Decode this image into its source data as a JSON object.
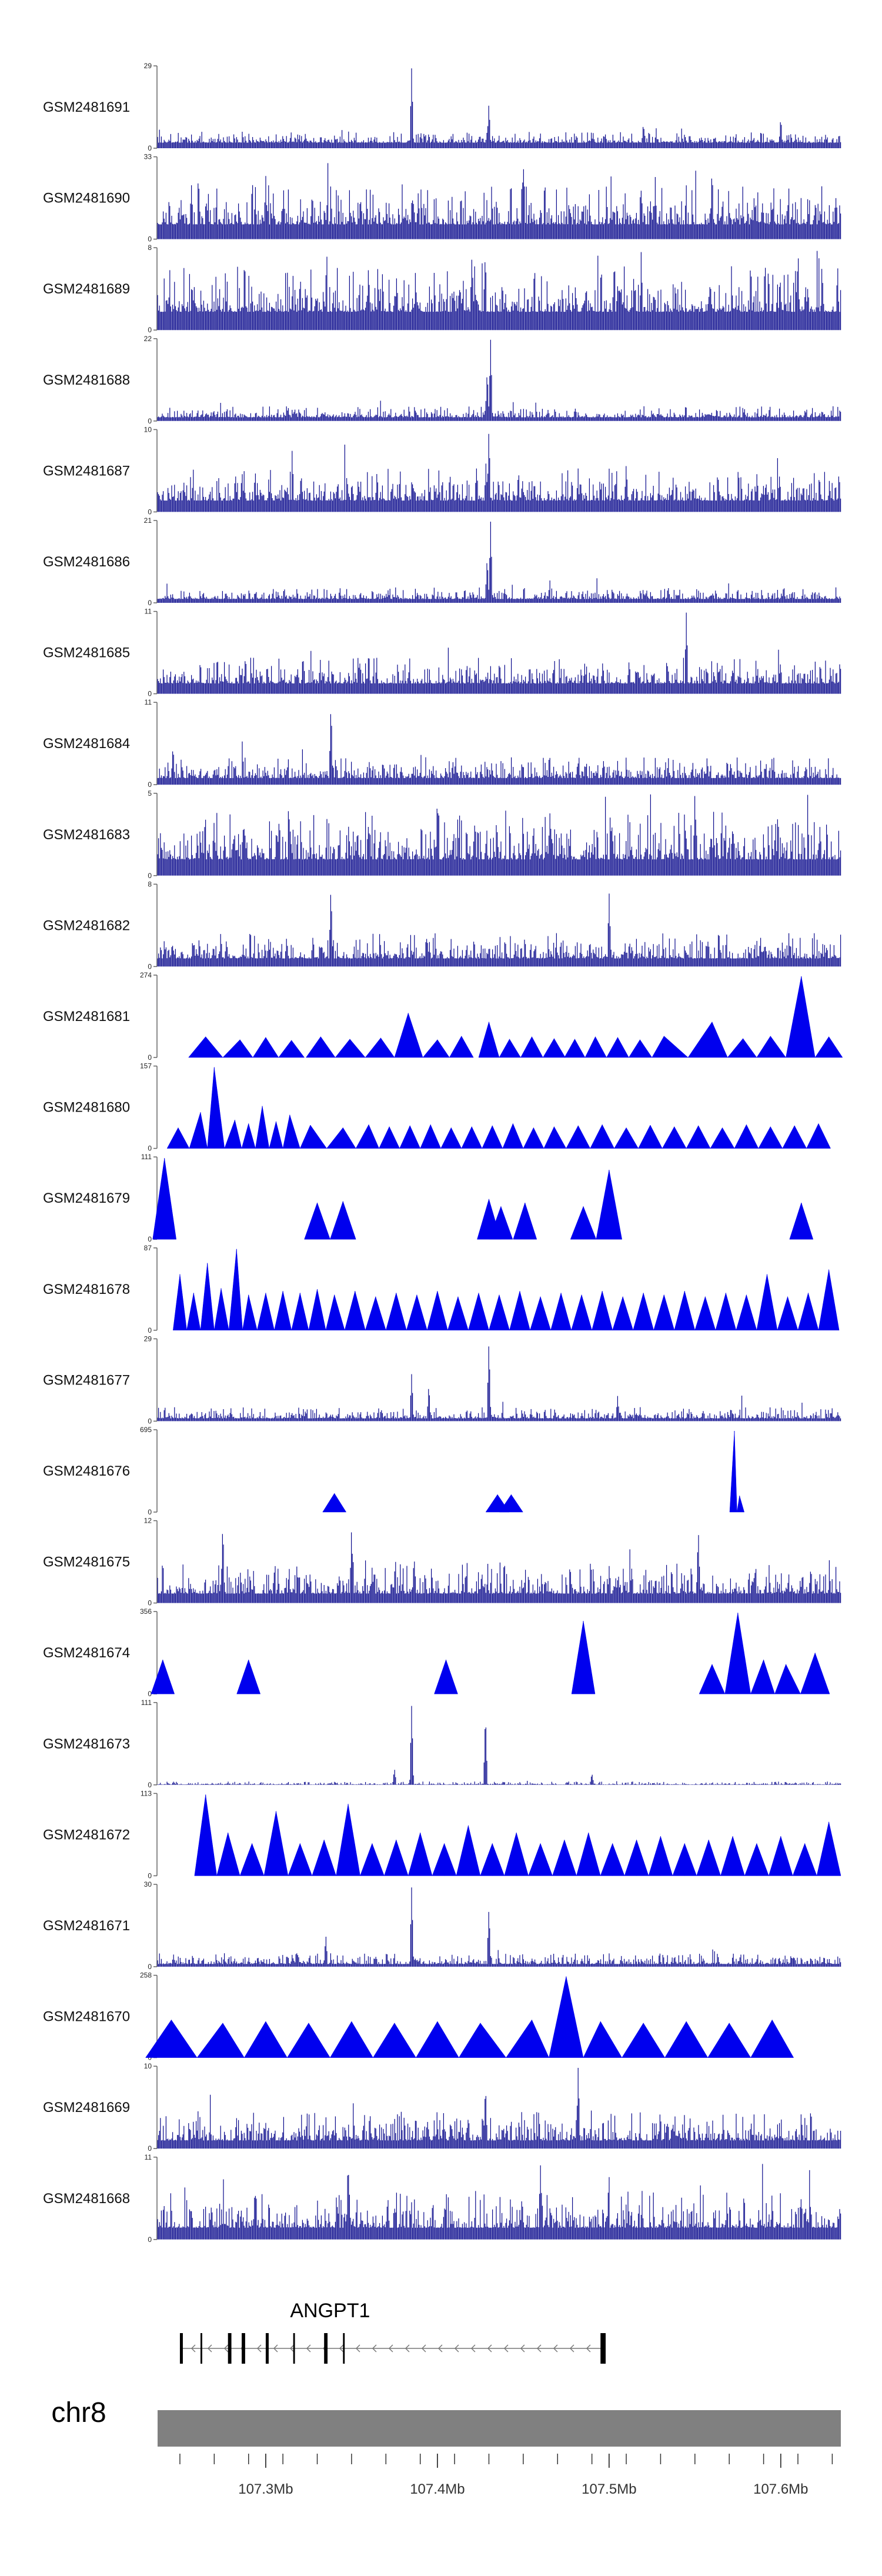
{
  "chart_data": {
    "type": "area",
    "title": "",
    "xlabel": "",
    "ylabel": "",
    "xlim_mb": [
      107.237,
      107.635
    ],
    "tracks": [
      {
        "name": "GSM2481691",
        "ymax": 29,
        "ymin": 0,
        "style": "dense",
        "color": "#0a0a8c",
        "baseline": 2.0,
        "noise": 4.0,
        "peaks": [
          [
            107.385,
            29
          ],
          [
            107.43,
            16
          ],
          [
            107.6,
            11
          ],
          [
            107.52,
            9
          ]
        ],
        "seed": 11
      },
      {
        "name": "GSM2481690",
        "ymax": 33,
        "ymin": 0,
        "style": "dense",
        "color": "#0a0a8c",
        "baseline": 6.0,
        "noise": 16.0,
        "peaks": [
          [
            107.45,
            33
          ],
          [
            107.56,
            30
          ],
          [
            107.3,
            26
          ]
        ],
        "seed": 12
      },
      {
        "name": "GSM2481689",
        "ymax": 8,
        "ymin": 0,
        "style": "dense",
        "color": "#0a0a8c",
        "baseline": 1.8,
        "noise": 4.5,
        "peaks": [
          [
            107.61,
            8
          ],
          [
            107.42,
            7
          ]
        ],
        "seed": 13
      },
      {
        "name": "GSM2481688",
        "ymax": 22,
        "ymin": 0,
        "style": "dense",
        "color": "#0a0a8c",
        "baseline": 1.0,
        "noise": 3.0,
        "peaks": [
          [
            107.431,
            22
          ],
          [
            107.429,
            14
          ]
        ],
        "seed": 14
      },
      {
        "name": "GSM2481687",
        "ymax": 10,
        "ymin": 0,
        "style": "dense",
        "color": "#0a0a8c",
        "baseline": 1.4,
        "noise": 4.0,
        "peaks": [
          [
            107.43,
            10
          ],
          [
            107.51,
            6
          ]
        ],
        "seed": 15
      },
      {
        "name": "GSM2481686",
        "ymax": 21,
        "ymin": 0,
        "style": "dense",
        "color": "#0a0a8c",
        "baseline": 1.0,
        "noise": 3.0,
        "peaks": [
          [
            107.431,
            21
          ],
          [
            107.429,
            12
          ]
        ],
        "seed": 16
      },
      {
        "name": "GSM2481685",
        "ymax": 11,
        "ymin": 0,
        "style": "dense",
        "color": "#0a0a8c",
        "baseline": 1.4,
        "noise": 3.5,
        "peaks": [
          [
            107.545,
            11
          ],
          [
            107.36,
            6
          ]
        ],
        "seed": 17
      },
      {
        "name": "GSM2481684",
        "ymax": 11,
        "ymin": 0,
        "style": "dense",
        "color": "#0a0a8c",
        "baseline": 0.9,
        "noise": 2.8,
        "peaks": [
          [
            107.338,
            11
          ],
          [
            107.246,
            5
          ]
        ],
        "seed": 18
      },
      {
        "name": "GSM2481683",
        "ymax": 5,
        "ymin": 0,
        "style": "dense",
        "color": "#0a0a8c",
        "baseline": 1.0,
        "noise": 3.0,
        "peaks": [
          [
            107.4,
            5
          ],
          [
            107.55,
            5
          ]
        ],
        "seed": 19
      },
      {
        "name": "GSM2481682",
        "ymax": 8,
        "ymin": 0,
        "style": "dense",
        "color": "#0a0a8c",
        "baseline": 0.8,
        "noise": 2.5,
        "peaks": [
          [
            107.338,
            8
          ],
          [
            107.5,
            7
          ]
        ],
        "seed": 20
      },
      {
        "name": "GSM2481681",
        "ymax": 274,
        "ymin": 0,
        "style": "triangles",
        "color": "#0000ee",
        "peaks_mb": [
          107.265,
          107.285,
          107.3,
          107.315,
          107.332,
          107.349,
          107.367,
          107.383,
          107.4,
          107.414,
          107.43,
          107.442,
          107.455,
          107.468,
          107.48,
          107.492,
          107.505,
          107.518,
          107.532,
          107.56,
          107.578,
          107.594,
          107.612,
          107.628
        ],
        "heights": [
          70,
          60,
          68,
          58,
          70,
          62,
          66,
          150,
          60,
          72,
          120,
          62,
          70,
          64,
          62,
          70,
          68,
          60,
          72,
          120,
          64,
          72,
          274,
          70
        ],
        "gaps_after": [
          3,
          9,
          13
        ]
      },
      {
        "name": "GSM2481680",
        "ymax": 157,
        "ymin": 0,
        "style": "triangles",
        "color": "#0000ee",
        "peaks_mb": [
          107.249,
          107.262,
          107.27,
          107.282,
          107.29,
          107.298,
          107.306,
          107.314,
          107.326,
          107.345,
          107.36,
          107.372,
          107.384,
          107.396,
          107.408,
          107.42,
          107.432,
          107.444,
          107.456,
          107.468,
          107.482,
          107.496,
          107.51,
          107.524,
          107.538,
          107.552,
          107.566,
          107.58,
          107.594,
          107.608,
          107.622
        ],
        "heights": [
          40,
          70,
          157,
          55,
          48,
          82,
          52,
          65,
          45,
          40,
          46,
          42,
          44,
          46,
          40,
          42,
          44,
          48,
          40,
          42,
          44,
          46,
          40,
          45,
          42,
          44,
          40,
          46,
          42,
          44,
          48
        ],
        "gaps_after": []
      },
      {
        "name": "GSM2481679",
        "ymax": 111,
        "ymin": 0,
        "style": "triangles",
        "color": "#0000ee",
        "peaks_mb": [
          107.241,
          107.33,
          107.345,
          107.43,
          107.437,
          107.451,
          107.485,
          107.5,
          107.612
        ],
        "heights": [
          111,
          50,
          52,
          55,
          45,
          50,
          45,
          95,
          50
        ],
        "gaps_after": [
          0,
          2,
          3,
          4,
          5,
          7
        ]
      },
      {
        "name": "GSM2481678",
        "ymax": 87,
        "ymin": 0,
        "style": "triangles",
        "color": "#0000ee",
        "peaks_mb": [
          107.25,
          107.258,
          107.266,
          107.274,
          107.283,
          107.29,
          107.3,
          107.31,
          107.32,
          107.33,
          107.34,
          107.352,
          107.364,
          107.376,
          107.388,
          107.4,
          107.412,
          107.424,
          107.436,
          107.448,
          107.46,
          107.472,
          107.484,
          107.496,
          107.508,
          107.52,
          107.532,
          107.544,
          107.556,
          107.568,
          107.58,
          107.592,
          107.604,
          107.616,
          107.628
        ],
        "heights": [
          60,
          40,
          72,
          45,
          87,
          38,
          40,
          42,
          40,
          44,
          38,
          42,
          36,
          40,
          38,
          42,
          36,
          40,
          38,
          42,
          36,
          40,
          38,
          42,
          36,
          40,
          38,
          42,
          36,
          40,
          38,
          60,
          36,
          40,
          65
        ],
        "gaps_after": []
      },
      {
        "name": "GSM2481677",
        "ymax": 29,
        "ymin": 0,
        "style": "dense",
        "color": "#0a0a8c",
        "baseline": 1.0,
        "noise": 4.0,
        "peaks": [
          [
            107.43,
            29
          ],
          [
            107.385,
            17
          ],
          [
            107.395,
            13
          ],
          [
            107.505,
            9
          ]
        ],
        "seed": 21
      },
      {
        "name": "GSM2481676",
        "ymax": 695,
        "ymin": 0,
        "style": "triangles",
        "color": "#0000ee",
        "peaks_mb": [
          107.34,
          107.435,
          107.443,
          107.573,
          107.576
        ],
        "heights": [
          160,
          150,
          150,
          695,
          140
        ],
        "gaps_after": [
          0,
          1,
          2
        ]
      },
      {
        "name": "GSM2481675",
        "ymax": 12,
        "ymin": 0,
        "style": "dense",
        "color": "#0a0a8c",
        "baseline": 1.4,
        "noise": 5.0,
        "peaks": [
          [
            107.275,
            12
          ],
          [
            107.35,
            11
          ],
          [
            107.552,
            11
          ]
        ],
        "seed": 22
      },
      {
        "name": "GSM2481674",
        "ymax": 356,
        "ymin": 0,
        "style": "triangles",
        "color": "#0000ee",
        "peaks_mb": [
          107.24,
          107.29,
          107.405,
          107.485,
          107.56,
          107.575,
          107.59,
          107.603,
          107.62
        ],
        "heights": [
          150,
          150,
          150,
          320,
          130,
          356,
          150,
          130,
          180
        ],
        "gaps_after": [
          0,
          1,
          2,
          3
        ]
      },
      {
        "name": "GSM2481673",
        "ymax": 111,
        "ymin": 0,
        "style": "dense",
        "color": "#0a0a8c",
        "baseline": 0.5,
        "noise": 4.0,
        "peaks": [
          [
            107.385,
            111
          ],
          [
            107.428,
            100
          ],
          [
            107.375,
            22
          ],
          [
            107.49,
            16
          ]
        ],
        "seed": 23
      },
      {
        "name": "GSM2481672",
        "ymax": 113,
        "ymin": 0,
        "style": "triangles",
        "color": "#0000ee",
        "peaks_mb": [
          107.265,
          107.278,
          107.292,
          107.306,
          107.32,
          107.334,
          107.348,
          107.362,
          107.376,
          107.39,
          107.404,
          107.418,
          107.432,
          107.446,
          107.46,
          107.474,
          107.488,
          107.502,
          107.516,
          107.53,
          107.544,
          107.558,
          107.572,
          107.586,
          107.6,
          107.614,
          107.628
        ],
        "heights": [
          113,
          60,
          45,
          90,
          45,
          50,
          100,
          45,
          50,
          60,
          45,
          70,
          45,
          60,
          45,
          50,
          60,
          45,
          50,
          55,
          45,
          50,
          55,
          45,
          55,
          45,
          75
        ],
        "gaps_after": []
      },
      {
        "name": "GSM2481671",
        "ymax": 30,
        "ymin": 0,
        "style": "dense",
        "color": "#0a0a8c",
        "baseline": 1.0,
        "noise": 4.0,
        "peaks": [
          [
            107.385,
            30
          ],
          [
            107.43,
            22
          ],
          [
            107.335,
            12
          ]
        ],
        "seed": 24
      },
      {
        "name": "GSM2481670",
        "ymax": 258,
        "ymin": 0,
        "style": "triangles",
        "color": "#0000ee",
        "peaks_mb": [
          107.245,
          107.275,
          107.3,
          107.325,
          107.35,
          107.375,
          107.4,
          107.425,
          107.455,
          107.475,
          107.495,
          107.52,
          107.545,
          107.57,
          107.595
        ],
        "heights": [
          120,
          110,
          115,
          110,
          115,
          110,
          115,
          110,
          120,
          258,
          115,
          110,
          115,
          110,
          120
        ],
        "gaps_after": []
      },
      {
        "name": "GSM2481669",
        "ymax": 10,
        "ymin": 0,
        "style": "dense",
        "color": "#0a0a8c",
        "baseline": 1.0,
        "noise": 3.6,
        "peaks": [
          [
            107.482,
            10
          ],
          [
            107.428,
            8
          ]
        ],
        "seed": 25
      },
      {
        "name": "GSM2481668",
        "ymax": 11,
        "ymin": 0,
        "style": "dense",
        "color": "#0a0a8c",
        "baseline": 1.6,
        "noise": 5.0,
        "peaks": [
          [
            107.348,
            11
          ],
          [
            107.46,
            10
          ]
        ],
        "seed": 26
      }
    ],
    "gene": {
      "name": "ANGPT1",
      "strand": "-",
      "start_mb": 107.25,
      "end_mb": 107.498,
      "exons_mb": [
        [
          107.25,
          107.253
        ],
        [
          107.262,
          107.263
        ],
        [
          107.278,
          107.28
        ],
        [
          107.286,
          107.288
        ],
        [
          107.3,
          107.302
        ],
        [
          107.316,
          107.317
        ],
        [
          107.334,
          107.336
        ],
        [
          107.345,
          107.346
        ],
        [
          107.495,
          107.498
        ]
      ]
    },
    "ideogram": {
      "chromosome": "chr8",
      "ticks_mb": [
        107.25,
        107.27,
        107.29,
        107.31,
        107.33,
        107.35,
        107.37,
        107.39,
        107.41,
        107.43,
        107.45,
        107.47,
        107.49,
        107.51,
        107.53,
        107.55,
        107.57,
        107.59,
        107.61,
        107.63
      ],
      "major_ticks": [
        {
          "mb": 107.3,
          "label": "107.3Mb"
        },
        {
          "mb": 107.4,
          "label": "107.4Mb"
        },
        {
          "mb": 107.5,
          "label": "107.5Mb"
        },
        {
          "mb": 107.6,
          "label": "107.6Mb"
        }
      ]
    }
  }
}
